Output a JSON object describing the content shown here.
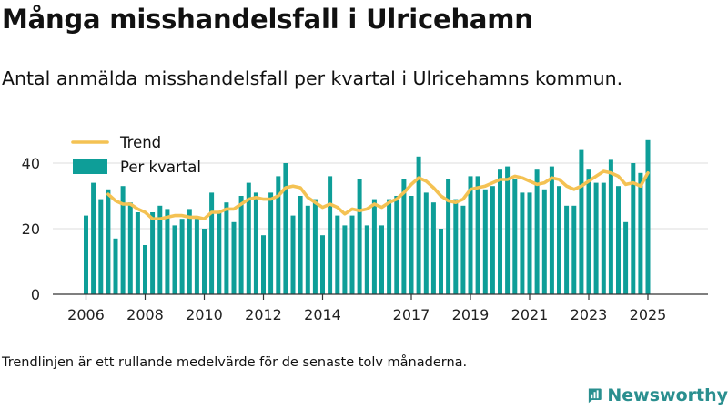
{
  "title": "Många misshandelsfall i Ulricehamn",
  "subtitle": "Antal anmälda misshandelsfall per kvartal i Ulricehamns kommun.",
  "footnote": "Trendlinjen är ett rullande medelvärde för de senaste tolv månaderna.",
  "brand": {
    "name": "Newsworthy",
    "icon": "bar-chart-logo-icon"
  },
  "colors": {
    "bars": "#0e9e98",
    "trend": "#f4c253",
    "grid": "#dddddd",
    "axis": "#333333"
  },
  "chart_data": {
    "type": "bar",
    "title": "",
    "xlabel": "",
    "ylabel": "",
    "ylim": [
      0,
      50
    ],
    "yticks": [
      0,
      20,
      40
    ],
    "grid": true,
    "legend_position": "top-left",
    "xticks": [
      "2006",
      "2008",
      "2010",
      "2012",
      "2014",
      "2017",
      "2019",
      "2021",
      "2023",
      "2025"
    ],
    "legend": [
      {
        "label": "Trend",
        "kind": "line"
      },
      {
        "label": "Per kvartal",
        "kind": "bar"
      }
    ],
    "series": [
      {
        "name": "Per kvartal",
        "type": "bar",
        "x": [
          2006.0,
          2006.25,
          2006.5,
          2006.75,
          2007.0,
          2007.25,
          2007.5,
          2007.75,
          2008.0,
          2008.25,
          2008.5,
          2008.75,
          2009.0,
          2009.25,
          2009.5,
          2009.75,
          2010.0,
          2010.25,
          2010.5,
          2010.75,
          2011.0,
          2011.25,
          2011.5,
          2011.75,
          2012.0,
          2012.25,
          2012.5,
          2012.75,
          2013.0,
          2013.25,
          2013.5,
          2013.75,
          2014.0,
          2014.25,
          2014.5,
          2014.75,
          2015.0,
          2015.25,
          2015.5,
          2015.75,
          2016.0,
          2016.25,
          2016.5,
          2016.75,
          2017.0,
          2017.25,
          2017.5,
          2017.75,
          2018.0,
          2018.25,
          2018.5,
          2018.75,
          2019.0,
          2019.25,
          2019.5,
          2019.75,
          2020.0,
          2020.25,
          2020.5,
          2020.75,
          2021.0,
          2021.25,
          2021.5,
          2021.75,
          2022.0,
          2022.25,
          2022.5,
          2022.75,
          2023.0,
          2023.25,
          2023.5,
          2023.75,
          2024.0,
          2024.25,
          2024.5,
          2024.75,
          2025.0
        ],
        "values": [
          24,
          34,
          29,
          32,
          17,
          33,
          28,
          25,
          15,
          25,
          27,
          26,
          21,
          23,
          26,
          23,
          20,
          31,
          25,
          28,
          22,
          30,
          34,
          31,
          18,
          31,
          36,
          40,
          24,
          30,
          27,
          29,
          18,
          36,
          24,
          21,
          24,
          35,
          21,
          29,
          21,
          29,
          30,
          35,
          30,
          42,
          31,
          28,
          20,
          35,
          29,
          27,
          36,
          36,
          32,
          33,
          38,
          39,
          35,
          31,
          31,
          38,
          32,
          39,
          33,
          27,
          27,
          44,
          38,
          34,
          34,
          41,
          33,
          22,
          40,
          37,
          47
        ]
      },
      {
        "name": "Trend",
        "type": "line",
        "x": [
          2006.75,
          2007.0,
          2007.25,
          2007.5,
          2007.75,
          2008.0,
          2008.25,
          2008.5,
          2008.75,
          2009.0,
          2009.25,
          2009.5,
          2009.75,
          2010.0,
          2010.25,
          2010.5,
          2010.75,
          2011.0,
          2011.25,
          2011.5,
          2011.75,
          2012.0,
          2012.25,
          2012.5,
          2012.75,
          2013.0,
          2013.25,
          2013.5,
          2013.75,
          2014.0,
          2014.25,
          2014.5,
          2014.75,
          2015.0,
          2015.25,
          2015.5,
          2015.75,
          2016.0,
          2016.25,
          2016.5,
          2016.75,
          2017.0,
          2017.25,
          2017.5,
          2017.75,
          2018.0,
          2018.25,
          2018.5,
          2018.75,
          2019.0,
          2019.25,
          2019.5,
          2019.75,
          2020.0,
          2020.25,
          2020.5,
          2020.75,
          2021.0,
          2021.25,
          2021.5,
          2021.75,
          2022.0,
          2022.25,
          2022.5,
          2022.75,
          2023.0,
          2023.25,
          2023.5,
          2023.75,
          2024.0,
          2024.25,
          2024.5,
          2024.75,
          2025.0
        ],
        "values": [
          30.5,
          28.5,
          27.5,
          27.5,
          26,
          25,
          23,
          23,
          23.5,
          24,
          24,
          23.5,
          23.5,
          23,
          25,
          25,
          26,
          26,
          27.5,
          29,
          29.5,
          29,
          29,
          30,
          32.5,
          33,
          32.5,
          29.5,
          28,
          26.5,
          27.5,
          26.5,
          24.5,
          26,
          25.5,
          26,
          27.5,
          26.5,
          28,
          29,
          31,
          33.5,
          35.5,
          34.5,
          32.5,
          30,
          28.5,
          28,
          29,
          32,
          32.5,
          33,
          34,
          35,
          35,
          36,
          35.5,
          34.5,
          33.5,
          34,
          35.5,
          35,
          33,
          32,
          33,
          34.5,
          36,
          37.5,
          37,
          36,
          33.5,
          34,
          33,
          37
        ]
      }
    ]
  }
}
